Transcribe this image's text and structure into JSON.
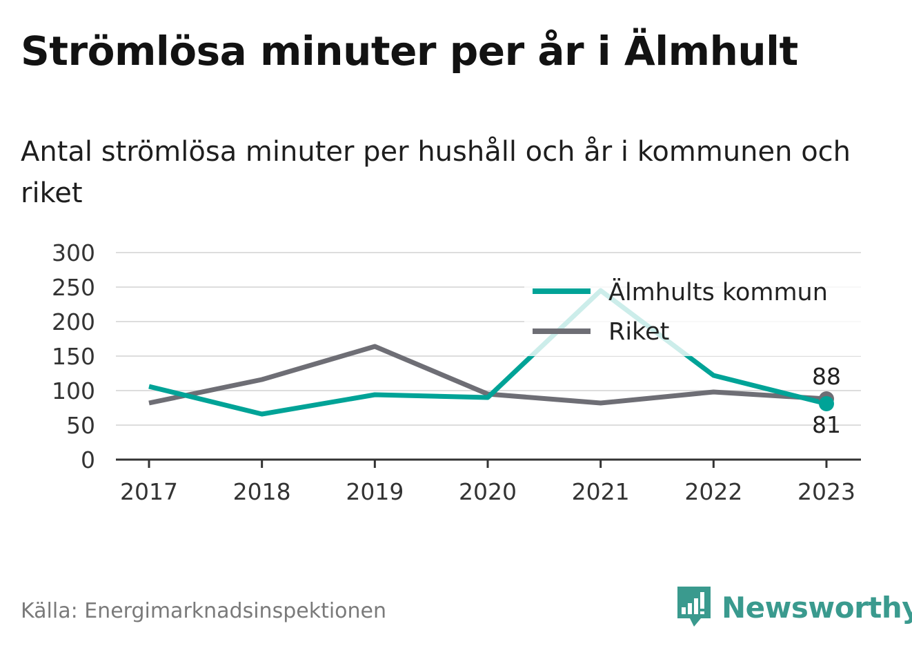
{
  "title": "Strömlösa minuter per år i Älmhult",
  "subtitle": "Antal strömlösa minuter per hushåll och år i kommunen och riket",
  "source": "Källa: Energimarknadsinspektionen",
  "brand": {
    "name": "Newsworthy",
    "icon": "newsworthy-logo-icon"
  },
  "colors": {
    "primary": "#00a397",
    "secondary": "#6e6e75",
    "grid": "#dddddd",
    "axis": "#333333"
  },
  "chart_data": {
    "type": "line",
    "categories": [
      "2017",
      "2018",
      "2019",
      "2020",
      "2021",
      "2022",
      "2023"
    ],
    "series": [
      {
        "name": "Älmhults kommun",
        "values": [
          106,
          66,
          94,
          90,
          245,
          122,
          81
        ]
      },
      {
        "name": "Riket",
        "values": [
          82,
          116,
          164,
          95,
          82,
          98,
          88
        ]
      }
    ],
    "ylim": [
      0,
      300
    ],
    "yticks": [
      "0",
      "50",
      "100",
      "150",
      "200",
      "250",
      "300"
    ],
    "grid": true,
    "legend": "top-right",
    "end_labels": [
      "81",
      "88"
    ]
  }
}
